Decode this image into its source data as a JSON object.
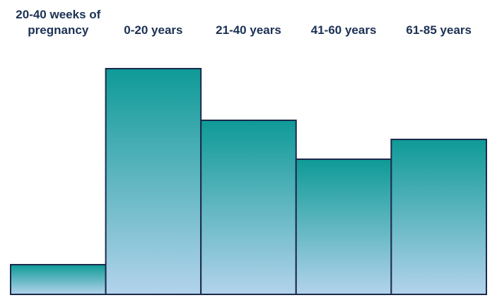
{
  "chart_data": {
    "type": "bar",
    "categories": [
      "20-40 weeks of pregnancy",
      "0-20 years",
      "21-40 years",
      "41-60 years",
      "61-85 years"
    ],
    "values": [
      42,
      319,
      246,
      191,
      219
    ],
    "color": "#0e9a97"
  }
}
